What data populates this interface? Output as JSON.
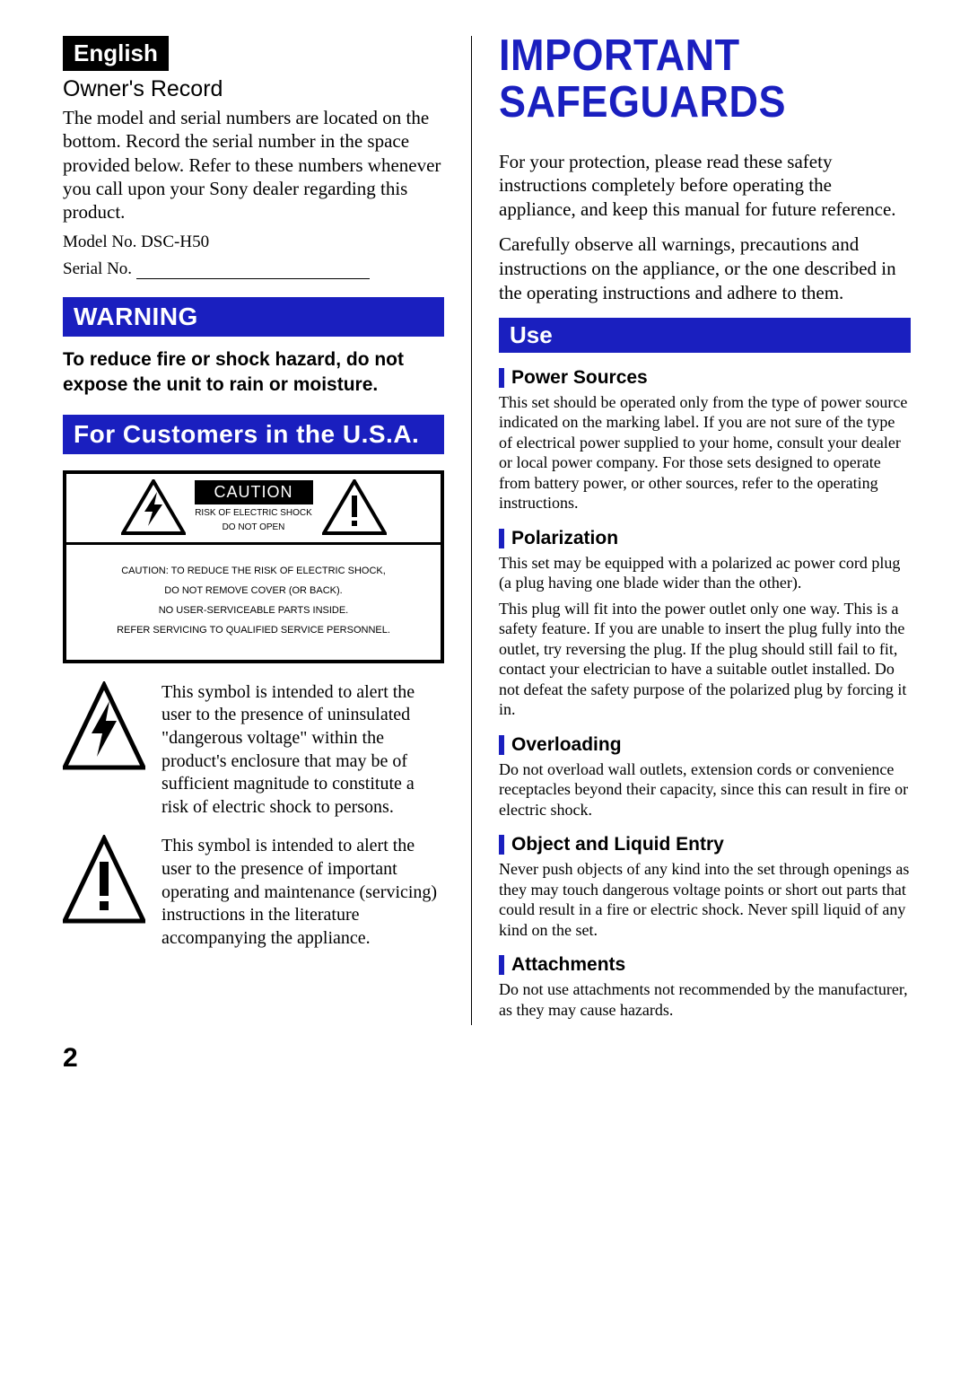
{
  "left": {
    "lang_tag": "English",
    "owners_record_heading": "Owner's Record",
    "owners_record_body": "The model and serial numbers are located on the bottom. Record the serial number in the space provided below. Refer to these numbers whenever you call upon your Sony dealer regarding this product.",
    "model_label": "Model No. DSC-H50",
    "serial_label": "Serial No.",
    "warning_heading": "WARNING",
    "warning_body": "To reduce fire or shock hazard, do not expose the unit to rain or moisture.",
    "customers_heading": "For Customers in the U.S.A.",
    "caution": {
      "title": "CAUTION",
      "sub1": "RISK OF ELECTRIC SHOCK",
      "sub2": "DO NOT OPEN",
      "line1": "CAUTION: TO REDUCE THE RISK OF ELECTRIC SHOCK,",
      "line2": "DO NOT REMOVE COVER (OR BACK).",
      "line3": "NO USER-SERVICEABLE PARTS INSIDE.",
      "line4": "REFER SERVICING TO QUALIFIED SERVICE PERSONNEL."
    },
    "symbol1_text": "This symbol is intended to alert the user to the presence of uninsulated \"dangerous voltage\" within the product's enclosure that may be of sufficient magnitude to constitute a risk of electric shock to persons.",
    "symbol2_text": "This symbol is intended to alert the user to the presence of important operating and maintenance (servicing) instructions in the literature accompanying the appliance."
  },
  "right": {
    "title_line1": "IMPORTANT",
    "title_line2": "SAFEGUARDS",
    "intro1": "For your protection, please read these safety instructions completely before operating the appliance, and keep this manual for future reference.",
    "intro2": "Carefully observe all warnings, precautions and instructions on the appliance, or the one described in the operating instructions and adhere to them.",
    "use_heading": "Use",
    "sections": [
      {
        "heading": "Power Sources",
        "body": "This set should be operated only from the type of power source indicated on the marking label. If you are not sure of the type of electrical power supplied to your home, consult your dealer or local power company. For those sets designed to operate from battery power, or other sources, refer to the operating instructions."
      },
      {
        "heading": "Polarization",
        "body": "This set may be equipped with a polarized ac power cord plug (a plug having one blade wider than the other).",
        "body2": "This plug will fit into the power outlet only one way. This is a safety feature. If you are unable to insert the plug fully into the outlet, try reversing the plug. If the plug should still fail to fit, contact your electrician to have a suitable outlet installed. Do not defeat the safety purpose of the polarized plug by forcing it in."
      },
      {
        "heading": "Overloading",
        "body": "Do not overload wall outlets, extension cords or convenience receptacles beyond their capacity, since this can result in fire or electric shock."
      },
      {
        "heading": "Object and Liquid Entry",
        "body": "Never push objects of any kind into the set through openings as they may touch dangerous voltage points or short out parts that could result in a fire or electric shock. Never spill liquid of any kind on the set."
      },
      {
        "heading": "Attachments",
        "body": "Do not use attachments not recommended by the manufacturer, as they may cause hazards."
      }
    ]
  },
  "page_number": "2",
  "colors": {
    "blue": "#1a1fbf",
    "black": "#000000",
    "white": "#ffffff"
  }
}
